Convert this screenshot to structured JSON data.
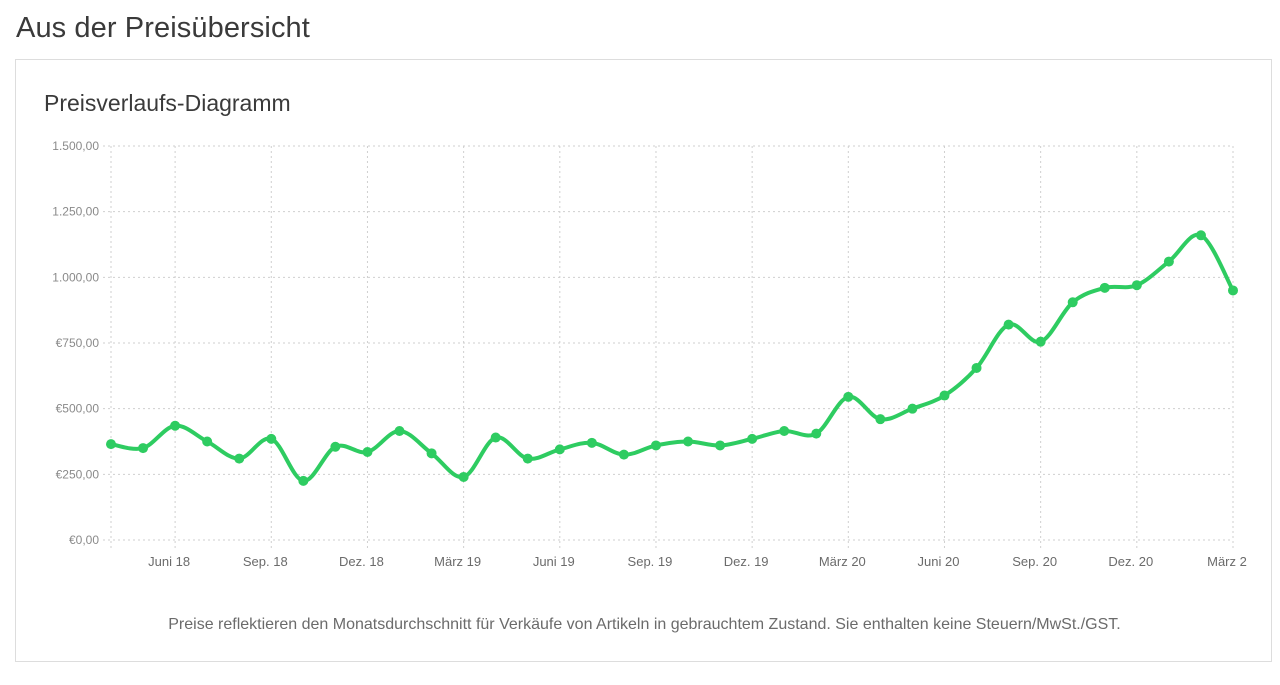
{
  "page": {
    "title": "Aus der Preisübersicht"
  },
  "card": {
    "title": "Preisverlaufs-Diagramm",
    "footnote": "Preise reflektieren den Monatsdurchschnitt für Verkäufe von Artikeln in gebrauchtem Zustand. Sie enthalten keine Steuern/MwSt./GST."
  },
  "chart_data": {
    "type": "line",
    "title": "Preisverlaufs-Diagramm",
    "xlabel": "",
    "ylabel": "",
    "x": [
      "2018-04",
      "2018-05",
      "2018-06",
      "2018-07",
      "2018-08",
      "2018-09",
      "2018-10",
      "2018-11",
      "2018-12",
      "2019-01",
      "2019-02",
      "2019-03",
      "2019-04",
      "2019-05",
      "2019-06",
      "2019-07",
      "2019-08",
      "2019-09",
      "2019-10",
      "2019-11",
      "2019-12",
      "2020-01",
      "2020-02",
      "2020-03",
      "2020-04",
      "2020-05",
      "2020-06",
      "2020-07",
      "2020-08",
      "2020-09",
      "2020-10",
      "2020-11",
      "2020-12",
      "2021-01",
      "2021-02",
      "2021-03"
    ],
    "series": [
      {
        "values": [
          365,
          350,
          435,
          375,
          310,
          385,
          225,
          355,
          335,
          415,
          330,
          240,
          390,
          310,
          345,
          370,
          325,
          360,
          375,
          360,
          385,
          415,
          405,
          545,
          460,
          500,
          550,
          655,
          820,
          755,
          905,
          960,
          970,
          1060,
          1160,
          950
        ],
        "color": "#2ecc61"
      }
    ],
    "ylim": [
      0,
      1500
    ],
    "y_ticks": [
      0,
      250,
      500,
      750,
      1000,
      1250,
      1500
    ],
    "y_tick_labels": [
      "€0,00",
      "€250,00",
      "€500,00",
      "€750,00",
      "1.000,00",
      "1.250,00",
      "1.500,00"
    ],
    "x_tick_positions": [
      "2018-06",
      "2018-09",
      "2018-12",
      "2019-03",
      "2019-06",
      "2019-09",
      "2019-12",
      "2020-03",
      "2020-06",
      "2020-09",
      "2020-12",
      "2021-03"
    ],
    "x_tick_labels": [
      "Juni 18",
      "Sep. 18",
      "Dez. 18",
      "März 19",
      "Juni 19",
      "Sep. 19",
      "Dez. 19",
      "März 20",
      "Juni 20",
      "Sep. 20",
      "Dez. 20",
      "März 2"
    ],
    "grid": true,
    "legend": "none"
  }
}
